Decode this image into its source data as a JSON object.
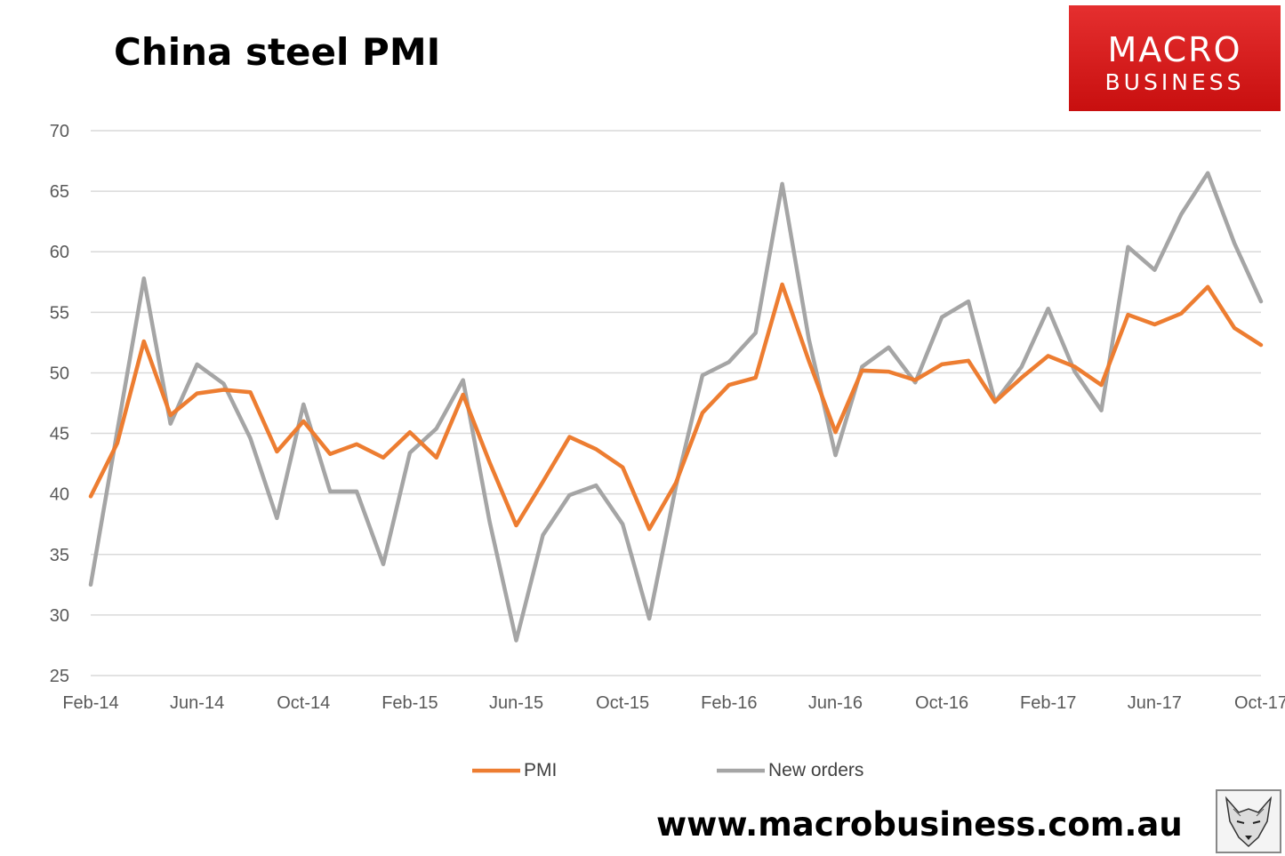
{
  "title": "China steel PMI",
  "logo": {
    "line1": "MACRO",
    "line2": "BUSINESS"
  },
  "footer_url": "www.macrobusiness.com.au",
  "legend": [
    "PMI",
    "New orders"
  ],
  "colors": {
    "pmi": "#ed7d31",
    "new_orders": "#a5a5a5",
    "grid": "#d9d9d9",
    "logo_red": "#d91c1c"
  },
  "chart_data": {
    "type": "line",
    "title": "China steel PMI",
    "xlabel": "",
    "ylabel": "",
    "ylim": [
      25,
      70
    ],
    "yticks": [
      25,
      30,
      35,
      40,
      45,
      50,
      55,
      60,
      65,
      70
    ],
    "grid": true,
    "legend_position": "bottom",
    "x": [
      "Feb-14",
      "Mar-14",
      "Apr-14",
      "May-14",
      "Jun-14",
      "Jul-14",
      "Aug-14",
      "Sep-14",
      "Oct-14",
      "Nov-14",
      "Dec-14",
      "Jan-15",
      "Feb-15",
      "Mar-15",
      "Apr-15",
      "May-15",
      "Jun-15",
      "Jul-15",
      "Aug-15",
      "Sep-15",
      "Oct-15",
      "Nov-15",
      "Dec-15",
      "Jan-16",
      "Feb-16",
      "Mar-16",
      "Apr-16",
      "May-16",
      "Jun-16",
      "Jul-16",
      "Aug-16",
      "Sep-16",
      "Oct-16",
      "Nov-16",
      "Dec-16",
      "Jan-17",
      "Feb-17",
      "Mar-17",
      "Apr-17",
      "May-17",
      "Jun-17",
      "Jul-17",
      "Aug-17",
      "Sep-17",
      "Oct-17"
    ],
    "xtick_labels": [
      "Feb-14",
      "Jun-14",
      "Oct-14",
      "Feb-15",
      "Jun-15",
      "Oct-15",
      "Feb-16",
      "Jun-16",
      "Oct-16",
      "Feb-17",
      "Jun-17",
      "Oct-17"
    ],
    "series": [
      {
        "name": "PMI",
        "color": "#ed7d31",
        "values": [
          39.8,
          44.2,
          52.6,
          46.5,
          48.3,
          48.6,
          48.4,
          43.5,
          46.0,
          43.3,
          44.1,
          43.0,
          45.1,
          43.0,
          48.2,
          42.6,
          37.4,
          41.0,
          44.7,
          43.7,
          42.2,
          37.1,
          40.9,
          46.7,
          49.0,
          49.6,
          57.3,
          51.0,
          45.1,
          50.2,
          50.1,
          49.4,
          50.7,
          51.0,
          47.6,
          49.6,
          51.4,
          50.5,
          49.0,
          54.8,
          54.0,
          54.9,
          57.1,
          53.7,
          52.3
        ]
      },
      {
        "name": "New orders",
        "color": "#a5a5a5",
        "values": [
          32.5,
          45.2,
          57.8,
          45.8,
          50.7,
          49.1,
          44.6,
          38.0,
          47.4,
          40.2,
          40.2,
          34.2,
          43.4,
          45.4,
          49.4,
          37.7,
          27.9,
          36.6,
          39.9,
          40.7,
          37.5,
          29.7,
          40.6,
          49.8,
          50.9,
          53.3,
          65.6,
          52.8,
          43.2,
          50.5,
          52.1,
          49.2,
          54.6,
          55.9,
          47.6,
          50.5,
          55.3,
          50.1,
          46.9,
          60.4,
          58.5,
          63.1,
          66.5,
          60.7,
          55.9
        ]
      }
    ]
  }
}
